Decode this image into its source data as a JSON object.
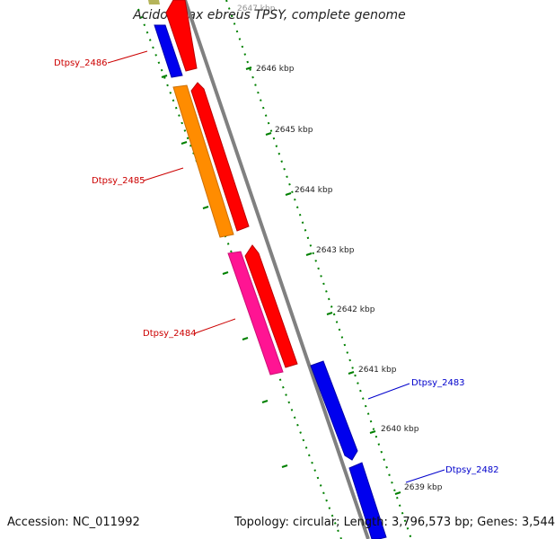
{
  "title": "Acidovorax ebreus TPSY, complete genome",
  "footer": {
    "accession": "Accession: NC_011992",
    "summary": "Topology: circular; Length: 3,796,573 bp; Genes: 3,544"
  },
  "tick_labels": [
    "2647 kbp",
    "2646 kbp",
    "2645 kbp",
    "2644 kbp",
    "2643 kbp",
    "2642 kbp",
    "2641 kbp",
    "2640 kbp",
    "2639 kbp"
  ],
  "genes": [
    {
      "label": "Dtpsy_2486",
      "color": "#0000ee"
    },
    {
      "label": "Dtpsy_2485",
      "color": "#ff8c00"
    },
    {
      "label": "Dtpsy_2484",
      "color": "#ff1493"
    },
    {
      "label": "Dtpsy_2483",
      "color": "#0000ee"
    },
    {
      "label": "Dtpsy_2482",
      "color": "#0000ee"
    }
  ],
  "colors": {
    "backbone": "#808080",
    "forward_strand": "#ff0000",
    "ticks": "#008000",
    "label_red": "#cc0000",
    "label_blue": "#0000cc"
  }
}
